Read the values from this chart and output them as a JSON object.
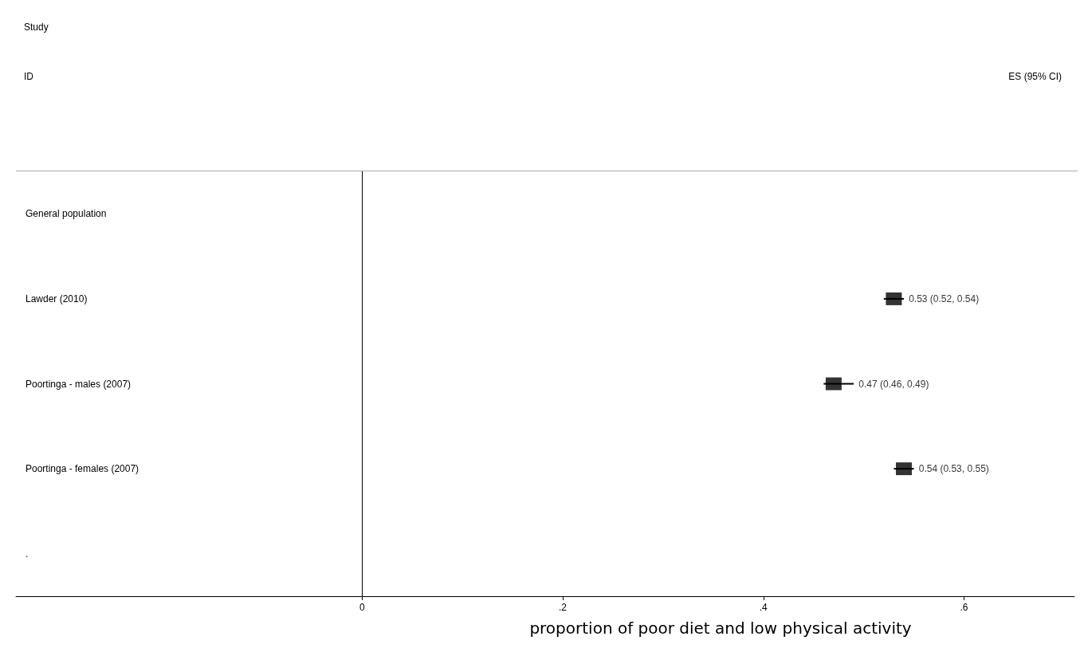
{
  "chart_data": {
    "type": "scatter",
    "orientation": "horizontal",
    "xlabel": "proportion of poor diet and low physical activity",
    "annotations": [
      "Study",
      "ID",
      "ES (95% CI)"
    ],
    "categories": [
      "General population",
      "Lawder (2010)",
      "Poortinga - males (2007)",
      "Poortinga - females (2007)",
      "."
    ],
    "values": [
      null,
      0.53,
      0.47,
      0.54,
      null
    ],
    "errors": [
      null,
      [
        0.52,
        0.54
      ],
      [
        0.46,
        0.49
      ],
      [
        0.53,
        0.55
      ],
      null
    ],
    "value_labels": [
      null,
      "0.53 (0.52, 0.54)",
      "0.47 (0.46, 0.49)",
      "0.54 (0.53, 0.55)",
      null
    ],
    "color": "#000000",
    "marker": "square",
    "grid": false,
    "xlim": [
      -0.345,
      0.71
    ],
    "xticks": [
      {
        "value": 0,
        "label": "0"
      },
      {
        "value": 0.2,
        "label": ".2"
      },
      {
        "value": 0.4,
        "label": ".4"
      },
      {
        "value": 0.6,
        "label": ".6"
      }
    ],
    "ref_lines": [
      {
        "axis": "x",
        "value": 0,
        "color": "#000000"
      }
    ]
  }
}
